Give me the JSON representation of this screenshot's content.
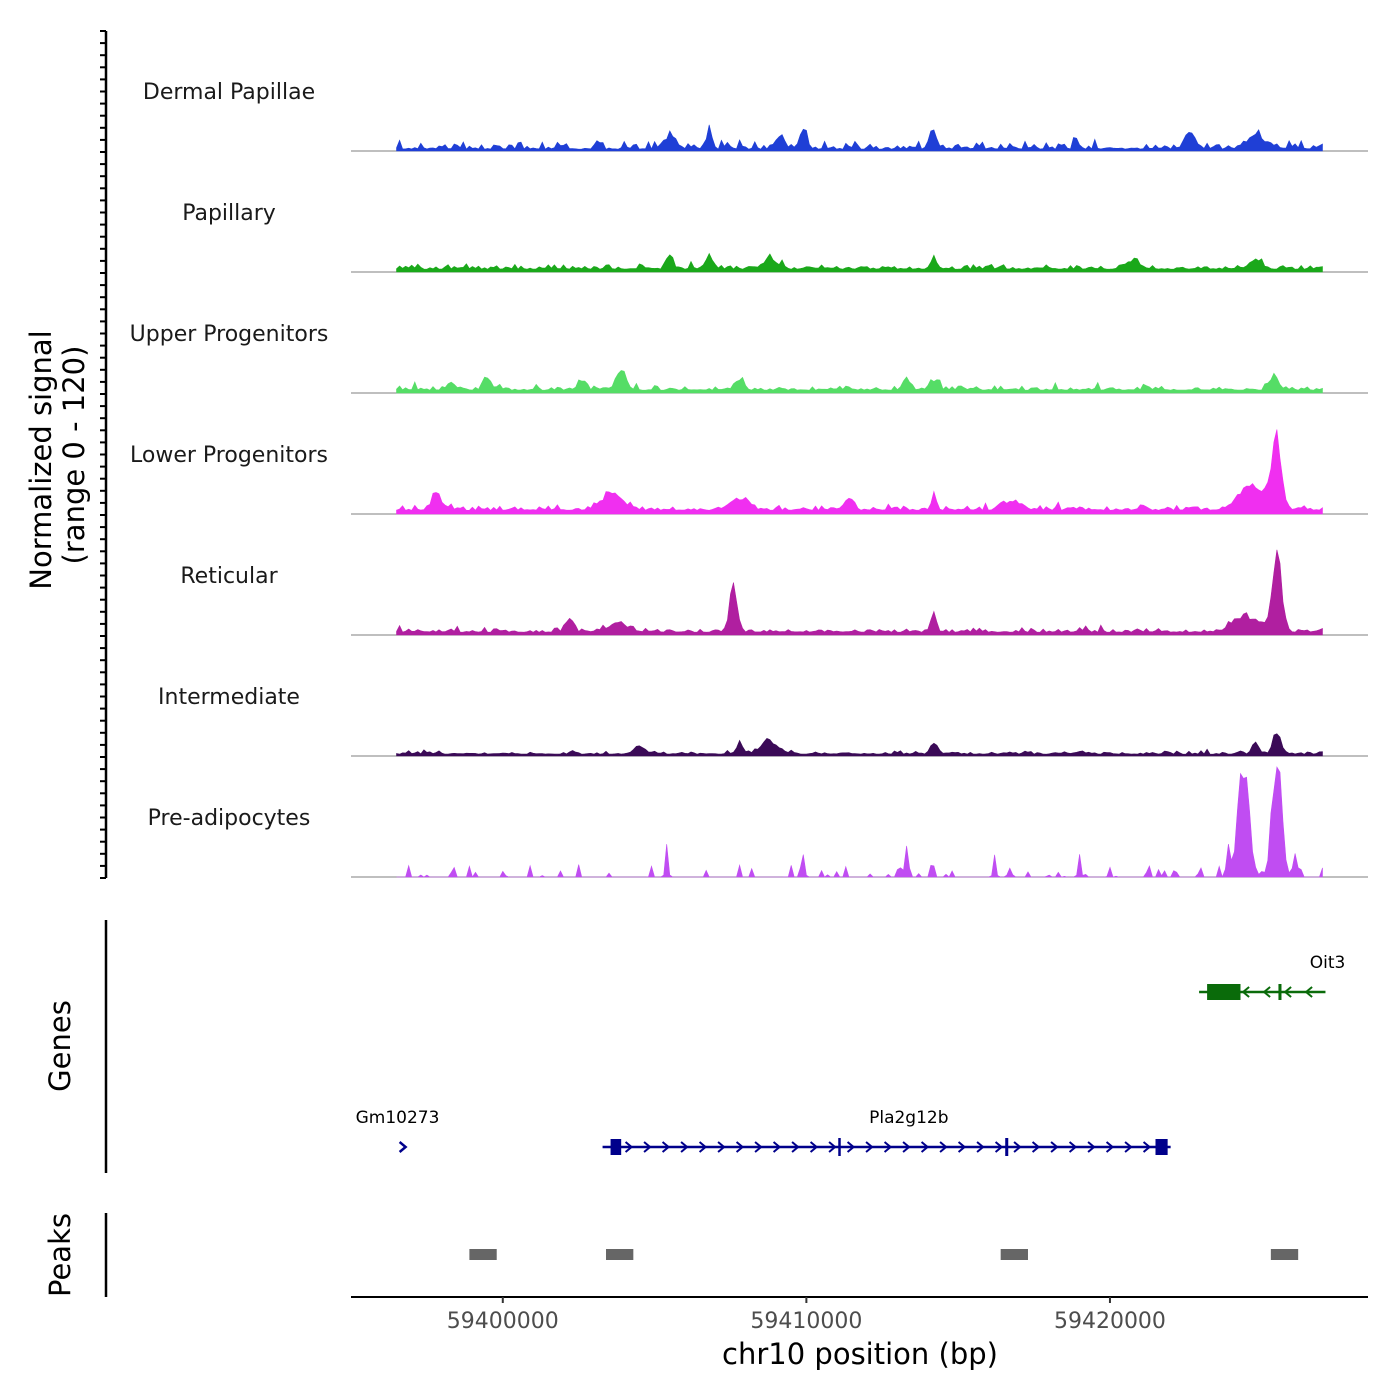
{
  "chart_data": {
    "type": "area",
    "title": "",
    "ylabel_line1": "Normalized signal",
    "ylabel_line2": "(range 0 - 120)",
    "y_range": [
      0,
      120
    ],
    "xlabel": "chr10 position (bp)",
    "xlim": [
      59395000,
      59428500
    ],
    "x_ticks": [
      59400000,
      59410000,
      59420000
    ],
    "x_tick_labels": [
      "59400000",
      "59410000",
      "59420000"
    ],
    "signal_start": 59396500,
    "signal_end": 59427000,
    "signal_step_bp": 100,
    "tracks": [
      {
        "name": "Dermal Papillae",
        "color": "#1f3fd6",
        "baseline": 2,
        "noise": 10,
        "sparse": false,
        "peaks": [
          {
            "pos": 59405500,
            "height": 15,
            "width": 300
          },
          {
            "pos": 59406800,
            "height": 25,
            "width": 120
          },
          {
            "pos": 59409100,
            "height": 15,
            "width": 200
          },
          {
            "pos": 59409900,
            "height": 22,
            "width": 150
          },
          {
            "pos": 59414200,
            "height": 20,
            "width": 150
          },
          {
            "pos": 59422600,
            "height": 24,
            "width": 200
          },
          {
            "pos": 59424800,
            "height": 19,
            "width": 350
          }
        ]
      },
      {
        "name": "Papillary",
        "color": "#1aa81a",
        "baseline": 3,
        "noise": 6,
        "sparse": false,
        "peaks": [
          {
            "pos": 59405500,
            "height": 16,
            "width": 150
          },
          {
            "pos": 59406800,
            "height": 14,
            "width": 200
          },
          {
            "pos": 59408800,
            "height": 12,
            "width": 300
          },
          {
            "pos": 59414200,
            "height": 15,
            "width": 120
          },
          {
            "pos": 59420800,
            "height": 10,
            "width": 300
          },
          {
            "pos": 59424800,
            "height": 11,
            "width": 300
          }
        ]
      },
      {
        "name": "Upper Progenitors",
        "color": "#55dd66",
        "baseline": 3,
        "noise": 6,
        "sparse": false,
        "peaks": [
          {
            "pos": 59398300,
            "height": 9,
            "width": 200
          },
          {
            "pos": 59399500,
            "height": 10,
            "width": 200
          },
          {
            "pos": 59402600,
            "height": 10,
            "width": 200
          },
          {
            "pos": 59403900,
            "height": 25,
            "width": 220
          },
          {
            "pos": 59407800,
            "height": 12,
            "width": 200
          },
          {
            "pos": 59413300,
            "height": 13,
            "width": 150
          },
          {
            "pos": 59414200,
            "height": 12,
            "width": 200
          },
          {
            "pos": 59425400,
            "height": 18,
            "width": 200
          }
        ]
      },
      {
        "name": "Lower Progenitors",
        "color": "#f02ff0",
        "baseline": 4,
        "noise": 6,
        "sparse": false,
        "peaks": [
          {
            "pos": 59397800,
            "height": 20,
            "width": 200
          },
          {
            "pos": 59403600,
            "height": 20,
            "width": 500
          },
          {
            "pos": 59407800,
            "height": 14,
            "width": 400
          },
          {
            "pos": 59411400,
            "height": 12,
            "width": 200
          },
          {
            "pos": 59414200,
            "height": 18,
            "width": 120
          },
          {
            "pos": 59416800,
            "height": 11,
            "width": 400
          },
          {
            "pos": 59424700,
            "height": 30,
            "width": 600
          },
          {
            "pos": 59425500,
            "height": 85,
            "width": 220
          }
        ]
      },
      {
        "name": "Reticular",
        "color": "#b01fa0",
        "baseline": 3,
        "noise": 5,
        "sparse": false,
        "peaks": [
          {
            "pos": 59402200,
            "height": 18,
            "width": 150
          },
          {
            "pos": 59403800,
            "height": 10,
            "width": 500
          },
          {
            "pos": 59407600,
            "height": 55,
            "width": 180
          },
          {
            "pos": 59414200,
            "height": 28,
            "width": 120
          },
          {
            "pos": 59424500,
            "height": 18,
            "width": 600
          },
          {
            "pos": 59425500,
            "height": 95,
            "width": 220
          }
        ]
      },
      {
        "name": "Intermediate",
        "color": "#3b0a57",
        "baseline": 2,
        "noise": 4,
        "sparse": false,
        "peaks": [
          {
            "pos": 59404500,
            "height": 9,
            "width": 250
          },
          {
            "pos": 59407800,
            "height": 12,
            "width": 150
          },
          {
            "pos": 59408800,
            "height": 16,
            "width": 400
          },
          {
            "pos": 59414200,
            "height": 13,
            "width": 150
          },
          {
            "pos": 59424800,
            "height": 15,
            "width": 150
          },
          {
            "pos": 59425500,
            "height": 27,
            "width": 180
          }
        ]
      },
      {
        "name": "Pre-adipocytes",
        "color": "#c04df2",
        "baseline": 0,
        "noise": 14,
        "sparse": true,
        "peaks": [
          {
            "pos": 59405400,
            "height": 40,
            "width": 60
          },
          {
            "pos": 59409900,
            "height": 32,
            "width": 60
          },
          {
            "pos": 59413300,
            "height": 40,
            "width": 80
          },
          {
            "pos": 59416200,
            "height": 28,
            "width": 60
          },
          {
            "pos": 59419000,
            "height": 32,
            "width": 60
          },
          {
            "pos": 59423900,
            "height": 38,
            "width": 80
          },
          {
            "pos": 59424400,
            "height": 135,
            "width": 260
          },
          {
            "pos": 59425500,
            "height": 150,
            "width": 220
          },
          {
            "pos": 59426100,
            "height": 28,
            "width": 100
          }
        ]
      }
    ],
    "genes": {
      "title": "Genes",
      "items": [
        {
          "name": "Gm10273",
          "strand": "+",
          "color": "#00008b",
          "row": 2,
          "start": 59396700,
          "end": 59396750,
          "exons": []
        },
        {
          "name": "Pla2g12b",
          "strand": "+",
          "color": "#00008b",
          "row": 2,
          "start": 59403550,
          "end": 59421900,
          "exons": [
            [
              59403550,
              59403900
            ],
            [
              59411050,
              59411100
            ],
            [
              59416550,
              59416650
            ],
            [
              59421500,
              59421900
            ]
          ]
        },
        {
          "name": "Oit3",
          "strand": "-",
          "color": "#0a6b0a",
          "row": 1,
          "start": 59423200,
          "end": 59427000,
          "exons": [
            [
              59423200,
              59424300
            ],
            [
              59425550,
              59425650
            ]
          ]
        }
      ]
    },
    "peaks_track": {
      "title": "Peaks",
      "color": "#666666",
      "regions": [
        [
          59398900,
          59399800
        ],
        [
          59403400,
          59404300
        ],
        [
          59416400,
          59417300
        ],
        [
          59425300,
          59426200
        ]
      ]
    }
  }
}
